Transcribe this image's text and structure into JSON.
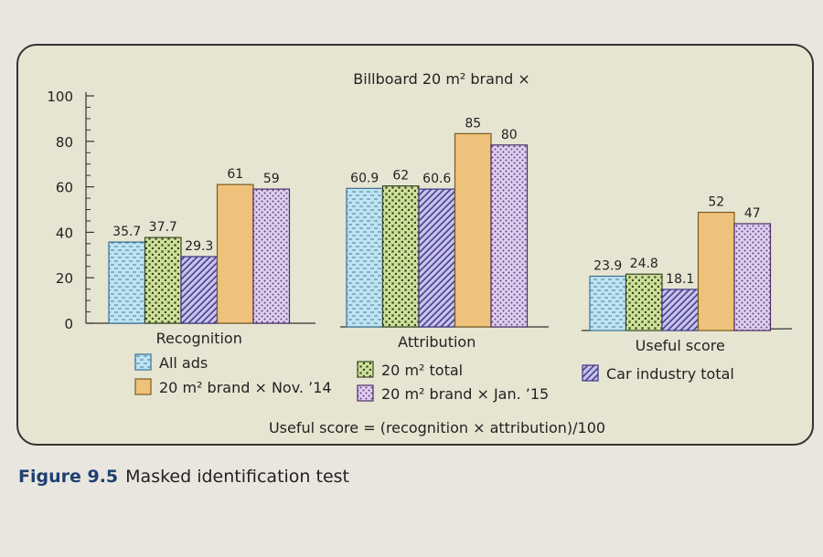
{
  "background_text": {
    "top": "",
    "bottom_right": ""
  },
  "caption": {
    "figure_label": "Figure 9.5",
    "title": "Masked identification test"
  },
  "colors": {
    "panel": "#e6e5d2",
    "all_ads": "#bfe3f0",
    "total_20m2": "#cfe09a",
    "car_industry": "#c7c3ea",
    "nov14": "#eec27a",
    "jan15": "#ddd0ee"
  },
  "chart_data": {
    "type": "bar",
    "title": "Billboard 20 m² brand ×",
    "subtitle": "",
    "xlabel": "",
    "ylabel": "",
    "ylim": [
      0,
      100
    ],
    "yticks": [
      0,
      20,
      40,
      60,
      80,
      100
    ],
    "categories": [
      "Recognition",
      "Attribution",
      "Useful score"
    ],
    "series": [
      {
        "name": "All ads",
        "values": [
          35.7,
          60.9,
          23.9
        ],
        "labels": [
          "35.7",
          "60.9",
          "23.9"
        ],
        "pattern": "dashes"
      },
      {
        "name": "20 m² total",
        "values": [
          37.7,
          62,
          24.8
        ],
        "labels": [
          "37.7",
          "62",
          "24.8"
        ],
        "pattern": "crosses"
      },
      {
        "name": "Car industry total",
        "values": [
          29.3,
          60.6,
          18.1
        ],
        "labels": [
          "29.3",
          "60.6",
          "18.1"
        ],
        "pattern": "diagonal"
      },
      {
        "name": "20 m² brand × Nov. ’14",
        "values": [
          61,
          85,
          52
        ],
        "labels": [
          "61",
          "85",
          "52"
        ],
        "pattern": "solid"
      },
      {
        "name": "20 m² brand × Jan. ’15",
        "values": [
          59,
          80,
          47
        ],
        "labels": [
          "59",
          "80",
          "47"
        ],
        "pattern": "dots"
      }
    ],
    "legend_placement": "bottom",
    "grid": false,
    "footnote": "Useful score = (recognition × attribution)/100"
  }
}
